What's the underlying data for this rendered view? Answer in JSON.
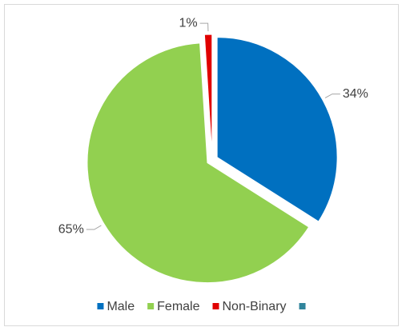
{
  "chart_data": {
    "type": "pie",
    "categories": [
      "Male",
      "Female",
      "Non-Binary",
      null
    ],
    "values": [
      34,
      65,
      1,
      0
    ],
    "value_labels": [
      "34%",
      "65%",
      "1%",
      null
    ],
    "colors": [
      "#0070c0",
      "#92d050",
      "#e00000",
      "#31859c"
    ],
    "legend": "bottom"
  }
}
